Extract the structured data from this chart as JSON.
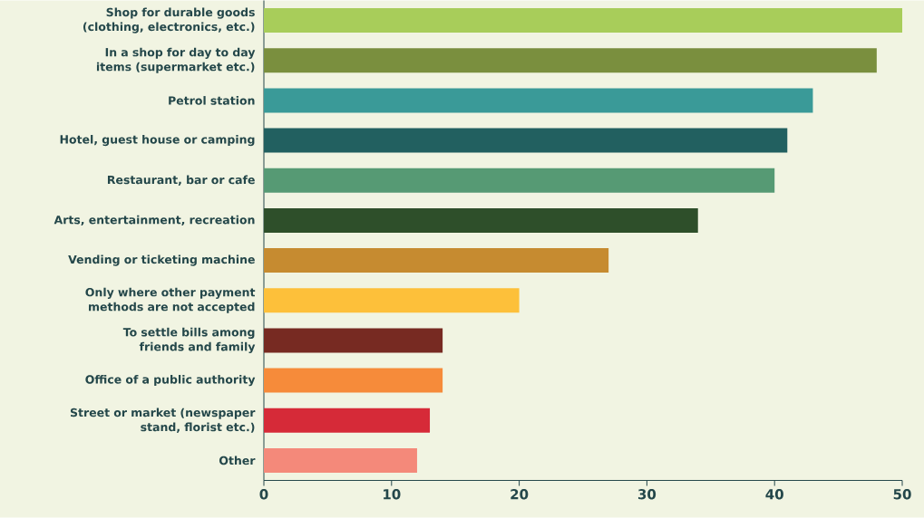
{
  "chart_data": {
    "type": "bar",
    "orientation": "horizontal",
    "categories": [
      "Shop for durable goods (clothing, electronics, etc.)",
      "In a shop for day to day items (supermarket etc.)",
      "Petrol station",
      "Hotel, guest house or camping",
      "Restaurant, bar or cafe",
      "Arts, entertainment, recreation",
      "Vending or ticketing machine",
      "Only where other payment methods are not accepted",
      "To settle bills among friends and family",
      "Office of a public authority",
      "Street or market (newspaper stand, florist etc.)",
      "Other"
    ],
    "values": [
      50,
      48,
      43,
      41,
      40,
      34,
      27,
      20,
      14,
      14,
      13,
      12
    ],
    "colors": [
      "#a8cd5a",
      "#7a8f3e",
      "#3a9a98",
      "#226060",
      "#569a74",
      "#2e4f2a",
      "#c68b30",
      "#fdc03a",
      "#772a22",
      "#f68b3a",
      "#d62a38",
      "#f4897a"
    ],
    "xlim": [
      0,
      50
    ],
    "xticks": [
      0,
      10,
      20,
      30,
      40,
      50
    ]
  }
}
